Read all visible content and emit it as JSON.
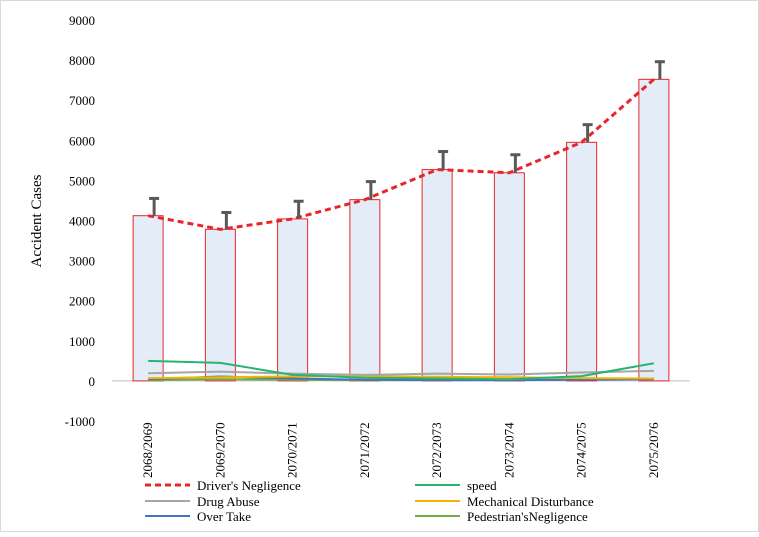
{
  "chart_data": {
    "type": "bar",
    "categories": [
      "2068/2069",
      "2069/2070",
      "2070/2071",
      "2071/2072",
      "2072/2073",
      "2073/2074",
      "2074/2075",
      "2075/2076"
    ],
    "ylabel": "Accident Cases",
    "ylim": [
      -1000,
      9000
    ],
    "yticks": [
      "-1000",
      "0",
      "1000",
      "2000",
      "3000",
      "4000",
      "5000",
      "6000",
      "7000",
      "8000",
      "9000"
    ],
    "grid": false,
    "legend_position": "bottom",
    "bar_values": [
      4120,
      3780,
      4040,
      4520,
      5270,
      5190,
      5950,
      7520
    ],
    "error_upper": [
      4550,
      4200,
      4480,
      4970,
      5720,
      5640,
      6390,
      7960
    ],
    "bar_fill": "#e3ecf7",
    "bar_stroke": "#e8262a",
    "error_color": "#595959",
    "series": [
      {
        "name": "Driver's Negligence",
        "color": "#e8262a",
        "dashed": true,
        "values": [
          4120,
          3780,
          4040,
          4520,
          5270,
          5190,
          5950,
          7520
        ]
      },
      {
        "name": "speed",
        "color": "#28b371",
        "dashed": false,
        "values": [
          500,
          450,
          150,
          80,
          60,
          40,
          120,
          440
        ]
      },
      {
        "name": "Drug Abuse",
        "color": "#a6a6a6",
        "dashed": false,
        "values": [
          190,
          230,
          180,
          150,
          180,
          160,
          210,
          250
        ]
      },
      {
        "name": "Mechanical Disturbance",
        "color": "#f4b400",
        "dashed": false,
        "values": [
          70,
          90,
          110,
          120,
          100,
          90,
          70,
          60
        ]
      },
      {
        "name": "Over Take",
        "color": "#4472c4",
        "dashed": false,
        "values": [
          40,
          110,
          60,
          30,
          20,
          20,
          30,
          40
        ]
      },
      {
        "name": "Pedestrian'sNegligence",
        "color": "#70ad47",
        "dashed": false,
        "values": [
          20,
          40,
          30,
          20,
          20,
          20,
          40,
          60
        ]
      }
    ]
  }
}
